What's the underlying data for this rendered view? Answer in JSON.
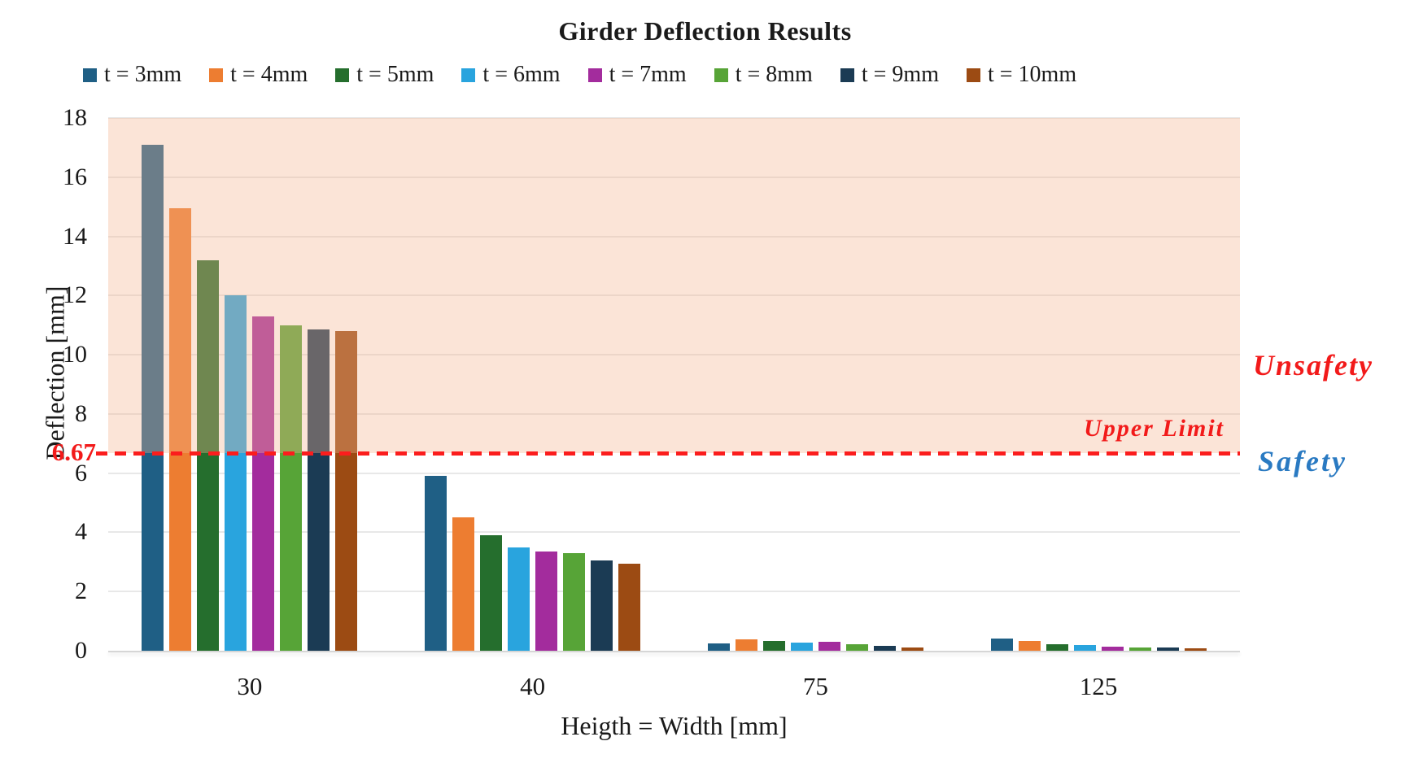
{
  "accent_colors": {
    "unsafe_red": "#f21a1a",
    "safe_blue": "#2a7ac2",
    "grid_gray": "#e8e8e8",
    "unsafe_fill": "#f4b491",
    "unsafe_fill_opacity": 0.36
  },
  "chart_data": {
    "type": "bar",
    "title": "Girder Deflection Results",
    "xlabel": "Heigth = Width [mm]",
    "ylabel": "Deflection [mm]",
    "categories": [
      "30",
      "40",
      "75",
      "125"
    ],
    "series": [
      {
        "name": "t = 3mm",
        "color": "#1F5F85",
        "values": [
          17.1,
          5.9,
          0.25,
          0.42
        ]
      },
      {
        "name": "t = 4mm",
        "color": "#ED7D31",
        "values": [
          14.95,
          4.5,
          0.38,
          0.32
        ]
      },
      {
        "name": "t = 5mm",
        "color": "#256E2D",
        "values": [
          13.2,
          3.9,
          0.33,
          0.21
        ]
      },
      {
        "name": "t = 6mm",
        "color": "#29A4DE",
        "values": [
          12.0,
          3.5,
          0.28,
          0.18
        ]
      },
      {
        "name": "t = 7mm",
        "color": "#A32C9D",
        "values": [
          11.3,
          3.35,
          0.3,
          0.13
        ]
      },
      {
        "name": "t = 8mm",
        "color": "#57A437",
        "values": [
          11.0,
          3.3,
          0.22,
          0.1
        ]
      },
      {
        "name": "t = 9mm",
        "color": "#1B3B54",
        "values": [
          10.85,
          3.05,
          0.17,
          0.1
        ]
      },
      {
        "name": "t = 10mm",
        "color": "#9C4B13",
        "values": [
          10.8,
          2.95,
          0.12,
          0.08
        ]
      }
    ],
    "ylim": [
      0,
      18
    ],
    "ytick_step": 2,
    "grid": true,
    "legend_position": "top",
    "upper_limit": {
      "value": 6.67,
      "axis_label": "6.67",
      "line_label": "Upper Limit",
      "style": "dashed"
    },
    "regions": {
      "unsafe_label": "Unsafety",
      "safe_label": "Safety"
    }
  }
}
